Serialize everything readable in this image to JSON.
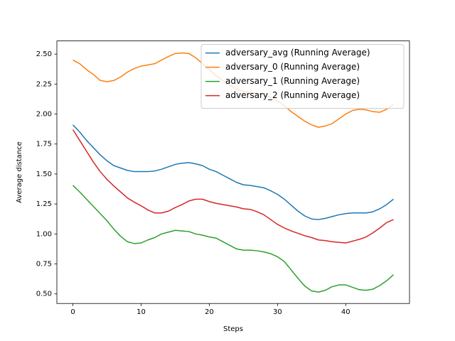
{
  "chart_data": {
    "type": "line",
    "xlabel": "Steps",
    "ylabel": "Average distance",
    "x": [
      0,
      1,
      2,
      3,
      4,
      5,
      6,
      7,
      8,
      9,
      10,
      11,
      12,
      13,
      14,
      15,
      16,
      17,
      18,
      19,
      20,
      21,
      22,
      23,
      24,
      25,
      26,
      27,
      28,
      29,
      30,
      31,
      32,
      33,
      34,
      35,
      36,
      37,
      38,
      39,
      40,
      41,
      42,
      43,
      44,
      45,
      46,
      47
    ],
    "series": [
      {
        "name": "adversary_avg (Running Average)",
        "color": "#1f77b4",
        "values": [
          1.91,
          1.85,
          1.78,
          1.72,
          1.66,
          1.61,
          1.57,
          1.55,
          1.53,
          1.52,
          1.52,
          1.52,
          1.525,
          1.54,
          1.56,
          1.58,
          1.59,
          1.595,
          1.585,
          1.57,
          1.54,
          1.52,
          1.49,
          1.46,
          1.43,
          1.41,
          1.405,
          1.395,
          1.385,
          1.36,
          1.33,
          1.29,
          1.24,
          1.19,
          1.15,
          1.125,
          1.12,
          1.13,
          1.145,
          1.16,
          1.17,
          1.175,
          1.175,
          1.175,
          1.185,
          1.21,
          1.245,
          1.29
        ]
      },
      {
        "name": "adversary_0 (Running Average)",
        "color": "#ff7f0e",
        "values": [
          2.45,
          2.42,
          2.37,
          2.33,
          2.28,
          2.27,
          2.28,
          2.31,
          2.35,
          2.38,
          2.4,
          2.41,
          2.42,
          2.45,
          2.48,
          2.505,
          2.51,
          2.505,
          2.47,
          2.42,
          2.37,
          2.32,
          2.28,
          2.24,
          2.21,
          2.19,
          2.18,
          2.17,
          2.16,
          2.14,
          2.11,
          2.07,
          2.02,
          1.98,
          1.94,
          1.91,
          1.89,
          1.9,
          1.92,
          1.96,
          2.0,
          2.03,
          2.04,
          2.035,
          2.02,
          2.015,
          2.04,
          2.08
        ]
      },
      {
        "name": "adversary_1 (Running Average)",
        "color": "#2ca02c",
        "values": [
          1.405,
          1.35,
          1.29,
          1.23,
          1.17,
          1.11,
          1.04,
          0.98,
          0.935,
          0.92,
          0.925,
          0.95,
          0.97,
          1.0,
          1.015,
          1.03,
          1.025,
          1.02,
          1.0,
          0.99,
          0.975,
          0.965,
          0.935,
          0.905,
          0.875,
          0.865,
          0.865,
          0.86,
          0.85,
          0.835,
          0.81,
          0.77,
          0.7,
          0.63,
          0.565,
          0.525,
          0.515,
          0.53,
          0.56,
          0.575,
          0.575,
          0.555,
          0.535,
          0.53,
          0.54,
          0.57,
          0.61,
          0.66
        ]
      },
      {
        "name": "adversary_2 (Running Average)",
        "color": "#d62728",
        "values": [
          1.87,
          1.78,
          1.69,
          1.6,
          1.52,
          1.455,
          1.4,
          1.35,
          1.3,
          1.265,
          1.235,
          1.2,
          1.175,
          1.175,
          1.19,
          1.22,
          1.245,
          1.275,
          1.29,
          1.29,
          1.27,
          1.255,
          1.245,
          1.235,
          1.225,
          1.21,
          1.205,
          1.185,
          1.16,
          1.12,
          1.08,
          1.05,
          1.025,
          1.005,
          0.985,
          0.97,
          0.95,
          0.945,
          0.935,
          0.93,
          0.925,
          0.94,
          0.955,
          0.975,
          1.01,
          1.05,
          1.095,
          1.12
        ]
      }
    ],
    "xlim": [
      -2.35,
      49.35
    ],
    "ylim": [
      0.42,
      2.61
    ],
    "xticks": [
      0,
      10,
      20,
      30,
      40
    ],
    "yticks": [
      {
        "value": 0.5,
        "label": "0.50"
      },
      {
        "value": 0.75,
        "label": "0.75"
      },
      {
        "value": 1.0,
        "label": "1.00"
      },
      {
        "value": 1.25,
        "label": "1.25"
      },
      {
        "value": 1.5,
        "label": "1.50"
      },
      {
        "value": 1.75,
        "label": "1.75"
      },
      {
        "value": 2.0,
        "label": "2.00"
      },
      {
        "value": 2.25,
        "label": "2.25"
      },
      {
        "value": 2.5,
        "label": "2.50"
      }
    ],
    "grid": false,
    "legend": "upper right"
  }
}
